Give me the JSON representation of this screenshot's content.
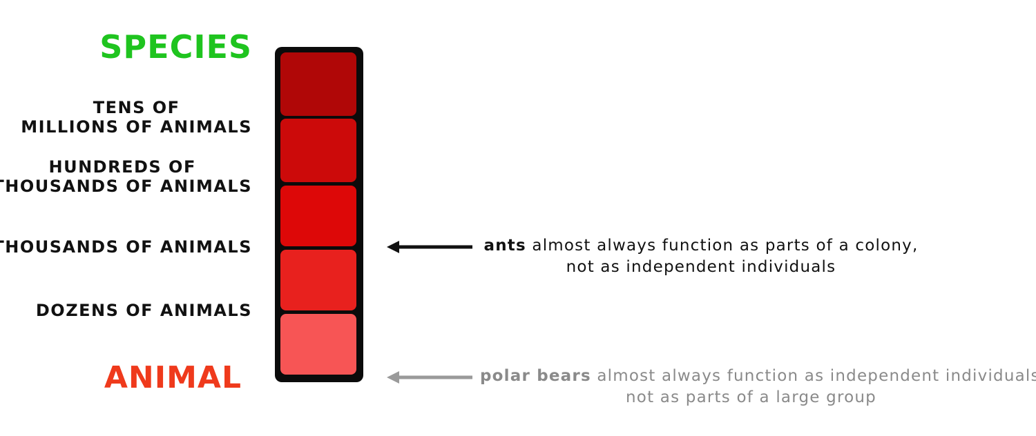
{
  "scale": {
    "top_label": "SPECIES",
    "bottom_label": "ANIMAL",
    "levels": [
      {
        "line1": "TENS OF",
        "line2": "MILLIONS OF ANIMALS"
      },
      {
        "line1": "HUNDREDS OF",
        "line2": "THOUSANDS OF ANIMALS"
      },
      {
        "line1": "",
        "line2": "THOUSANDS OF ANIMALS"
      },
      {
        "line1": "",
        "line2": "DOZENS OF ANIMALS"
      }
    ],
    "colors": {
      "top_label": "#1fc41f",
      "bottom_label": "#ef3a1c",
      "bar_border": "#0b0b0b",
      "cells": [
        "#b00707",
        "#cc0a0a",
        "#dd0808",
        "#e8211e",
        "#f75555"
      ]
    }
  },
  "annotations": {
    "ants": {
      "keyword": "ants",
      "rest": " almost always function as parts of a colony,",
      "line2": "not as independent individuals",
      "color": "#111111",
      "icon": "arrow-left-icon"
    },
    "polar_bears": {
      "keyword": "polar bears",
      "rest": " almost always function as independent individuals,",
      "line2": "not as parts of a large group",
      "color": "#8a8a8a",
      "icon": "arrow-left-icon"
    }
  }
}
